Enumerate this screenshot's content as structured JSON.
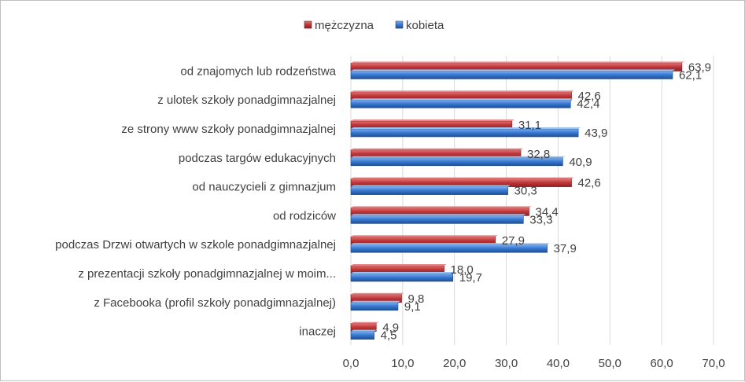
{
  "chart_data": {
    "type": "bar",
    "orientation": "horizontal",
    "categories": [
      "od znajomych lub rodzeństwa",
      "z ulotek szkoły ponadgimnazjalnej",
      "ze strony www szkoły ponadgimnazjalnej",
      "podczas targów edukacyjnych",
      "od nauczycieli z gimnazjum",
      "od rodziców",
      "podczas Drzwi otwartych w szkole ponadgimnazjalnej",
      "z prezentacji szkoły ponadgimnazjalnej w moim...",
      "z Facebooka (profil szkoły ponadgimnazjalnej)",
      "inaczej"
    ],
    "series": [
      {
        "name": "mężczyzna",
        "color": "#c0393b",
        "values": [
          63.9,
          42.6,
          31.1,
          32.8,
          42.6,
          34.4,
          27.9,
          18.0,
          9.8,
          4.9
        ],
        "labels": [
          "63,9",
          "42,6",
          "31,1",
          "32,8",
          "42,6",
          "34,4",
          "27,9",
          "18,0",
          "9,8",
          "4,9"
        ]
      },
      {
        "name": "kobieta",
        "color": "#3a7bd5",
        "values": [
          62.1,
          42.4,
          43.9,
          40.9,
          30.3,
          33.3,
          37.9,
          19.7,
          9.1,
          4.5
        ],
        "labels": [
          "62,1",
          "42,4",
          "43,9",
          "40,9",
          "30,3",
          "33,3",
          "37,9",
          "19,7",
          "9,1",
          "4,5"
        ]
      }
    ],
    "xlim": [
      0,
      70
    ],
    "xticks": [
      0,
      10,
      20,
      30,
      40,
      50,
      60,
      70
    ],
    "xtick_labels": [
      "0,0",
      "10,0",
      "20,0",
      "30,0",
      "40,0",
      "50,0",
      "60,0",
      "70,0"
    ],
    "grid": true,
    "legend_position": "top-center",
    "title": "",
    "xlabel": "",
    "ylabel": ""
  }
}
